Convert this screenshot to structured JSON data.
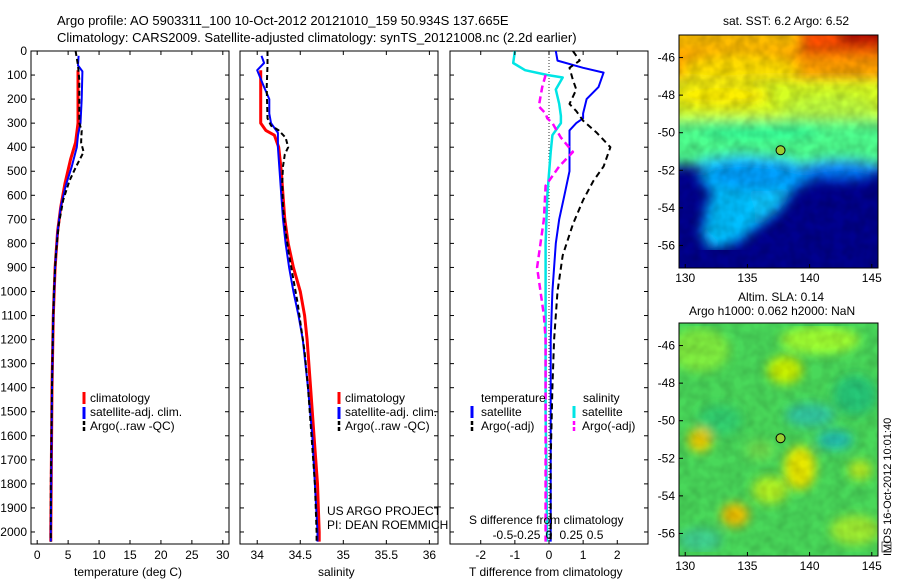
{
  "title": {
    "line1": "Argo profile: AO 5903311_100 10-Oct-2012 20121010_159 50.934S 137.665E",
    "line2": "Climatology: CARS2009. Satellite-adjusted climatology: synTS_20121008.nc (2.2d earlier)"
  },
  "colors": {
    "climatology": "#ff0000",
    "satellite": "#0000ff",
    "argo": "#000000",
    "salinity_satellite": "#00e5e5",
    "salinity_argo": "#ff00ff"
  },
  "legend_profile": {
    "climatology": "climatology",
    "satellite": "satellite-adj. clim.",
    "argo": "Argo(..raw -QC)"
  },
  "legend_diff": {
    "temperature": "temperature",
    "salinity": "salinity",
    "satellite": "satellite",
    "argo": "Argo(-adj)"
  },
  "credit": {
    "line1": "US ARGO PROJECT",
    "line2": "PI: DEAN ROEMMICH"
  },
  "vertical_stamp": "IMOS 16-Oct-2012 10:01:40",
  "chart_data": [
    {
      "type": "line",
      "id": "temperature",
      "xlabel": "temperature (deg C)",
      "ylabel": "",
      "xlim": [
        -1,
        31
      ],
      "ylim": [
        2050,
        0
      ],
      "x_ticks": [
        0,
        5,
        10,
        15,
        20,
        25,
        30
      ],
      "y_ticks": [
        0,
        100,
        200,
        300,
        400,
        500,
        600,
        700,
        800,
        900,
        1000,
        1100,
        1200,
        1300,
        1400,
        1500,
        1600,
        1700,
        1800,
        1900,
        2000
      ],
      "series": [
        {
          "key": "climatology",
          "points": [
            [
              6.6,
              80
            ],
            [
              6.6,
              300
            ],
            [
              6.2,
              380
            ],
            [
              5.4,
              450
            ],
            [
              4.5,
              550
            ],
            [
              3.8,
              650
            ],
            [
              3.3,
              750
            ],
            [
              2.9,
              900
            ],
            [
              2.6,
              1100
            ],
            [
              2.4,
              1400
            ],
            [
              2.3,
              1700
            ],
            [
              2.2,
              2000
            ],
            [
              2.2,
              2040
            ]
          ]
        },
        {
          "key": "satellite",
          "points": [
            [
              6.7,
              20
            ],
            [
              6.6,
              60
            ],
            [
              7.3,
              85
            ],
            [
              7.2,
              200
            ],
            [
              7.0,
              300
            ],
            [
              6.6,
              350
            ],
            [
              6.4,
              400
            ],
            [
              5.6,
              480
            ],
            [
              4.6,
              560
            ],
            [
              3.8,
              650
            ],
            [
              3.3,
              750
            ],
            [
              2.9,
              900
            ],
            [
              2.6,
              1100
            ],
            [
              2.4,
              1400
            ],
            [
              2.3,
              1700
            ],
            [
              2.2,
              2000
            ],
            [
              2.2,
              2040
            ]
          ]
        },
        {
          "key": "argo",
          "points": [
            [
              6.2,
              0
            ],
            [
              6.6,
              60
            ],
            [
              6.8,
              120
            ],
            [
              6.8,
              300
            ],
            [
              7.2,
              330
            ],
            [
              7.1,
              380
            ],
            [
              7.5,
              420
            ],
            [
              6.3,
              480
            ],
            [
              5.2,
              540
            ],
            [
              4.2,
              620
            ],
            [
              3.5,
              720
            ],
            [
              3.0,
              850
            ],
            [
              2.7,
              1000
            ],
            [
              2.5,
              1200
            ],
            [
              2.4,
              1400
            ],
            [
              2.3,
              1600
            ],
            [
              2.2,
              1800
            ],
            [
              2.2,
              2000
            ],
            [
              2.2,
              2040
            ]
          ]
        }
      ]
    },
    {
      "type": "line",
      "id": "salinity",
      "xlabel": "salinity",
      "ylabel": "",
      "xlim": [
        33.8,
        36.1
      ],
      "ylim": [
        2050,
        0
      ],
      "x_ticks": [
        34,
        34.5,
        35,
        35.5,
        36
      ],
      "x_tick_labels": [
        "34",
        "34.5",
        "35",
        "35.5",
        "36"
      ],
      "series": [
        {
          "key": "climatology",
          "points": [
            [
              34.04,
              80
            ],
            [
              34.04,
              300
            ],
            [
              34.1,
              330
            ],
            [
              34.2,
              350
            ],
            [
              34.25,
              400
            ],
            [
              34.28,
              500
            ],
            [
              34.3,
              600
            ],
            [
              34.32,
              700
            ],
            [
              34.36,
              800
            ],
            [
              34.42,
              900
            ],
            [
              34.5,
              1000
            ],
            [
              34.55,
              1100
            ],
            [
              34.58,
              1200
            ],
            [
              34.62,
              1400
            ],
            [
              34.66,
              1600
            ],
            [
              34.7,
              1800
            ],
            [
              34.72,
              2000
            ],
            [
              34.72,
              2040
            ]
          ]
        },
        {
          "key": "satellite",
          "points": [
            [
              34.05,
              20
            ],
            [
              34.08,
              50
            ],
            [
              34.0,
              80
            ],
            [
              34.08,
              150
            ],
            [
              34.14,
              200
            ],
            [
              34.14,
              260
            ],
            [
              34.16,
              300
            ],
            [
              34.24,
              340
            ],
            [
              34.24,
              400
            ],
            [
              34.26,
              500
            ],
            [
              34.28,
              600
            ],
            [
              34.3,
              700
            ],
            [
              34.33,
              800
            ],
            [
              34.37,
              900
            ],
            [
              34.42,
              1000
            ],
            [
              34.48,
              1100
            ],
            [
              34.53,
              1200
            ],
            [
              34.59,
              1400
            ],
            [
              34.64,
              1600
            ],
            [
              34.67,
              1800
            ],
            [
              34.7,
              2000
            ],
            [
              34.7,
              2040
            ]
          ]
        },
        {
          "key": "argo",
          "points": [
            [
              34.12,
              0
            ],
            [
              34.12,
              60
            ],
            [
              34.11,
              150
            ],
            [
              34.12,
              280
            ],
            [
              34.16,
              310
            ],
            [
              34.25,
              330
            ],
            [
              34.33,
              360
            ],
            [
              34.36,
              400
            ],
            [
              34.32,
              430
            ],
            [
              34.3,
              480
            ],
            [
              34.29,
              550
            ],
            [
              34.3,
              650
            ],
            [
              34.33,
              750
            ],
            [
              34.37,
              850
            ],
            [
              34.42,
              950
            ],
            [
              34.47,
              1050
            ],
            [
              34.51,
              1150
            ],
            [
              34.55,
              1250
            ],
            [
              34.59,
              1400
            ],
            [
              34.63,
              1600
            ],
            [
              34.67,
              1800
            ],
            [
              34.69,
              2000
            ],
            [
              34.69,
              2040
            ]
          ]
        }
      ]
    },
    {
      "type": "line",
      "id": "difference",
      "xlabel": "T difference from climatology",
      "xlabel2": "S difference from climatology",
      "ylabel": "",
      "xlim": [
        -2.9,
        2.9
      ],
      "ylim": [
        2050,
        0
      ],
      "x_ticks": [
        -2,
        -1,
        0,
        1,
        2
      ],
      "x_tick_labels": [
        "-2",
        "-1",
        "0",
        "1",
        "2"
      ],
      "s_ticks": [
        -0.5,
        -0.25,
        0,
        0.25,
        0.5
      ],
      "s_tick_labels": [
        "-0.5",
        "-0.25",
        "0",
        "0.25",
        "0.5"
      ],
      "s_tick_positions_T_units": [
        -1.35,
        -0.65,
        0,
        0.65,
        1.35
      ],
      "zero_line": true,
      "series": [
        {
          "key": "t_satellite",
          "points": [
            [
              0.2,
              0
            ],
            [
              0.25,
              40
            ],
            [
              1.0,
              70
            ],
            [
              1.6,
              90
            ],
            [
              1.45,
              150
            ],
            [
              1.1,
              200
            ],
            [
              1.0,
              260
            ],
            [
              1.0,
              280
            ],
            [
              0.8,
              300
            ],
            [
              0.6,
              330
            ],
            [
              0.6,
              400
            ],
            [
              0.6,
              500
            ],
            [
              0.45,
              600
            ],
            [
              0.3,
              700
            ],
            [
              0.2,
              800
            ],
            [
              0.15,
              900
            ],
            [
              0.1,
              1000
            ],
            [
              0.05,
              1200
            ],
            [
              0.05,
              1400
            ],
            [
              0.05,
              1600
            ],
            [
              0.05,
              2000
            ],
            [
              0.05,
              2040
            ]
          ]
        },
        {
          "key": "t_argo",
          "points": [
            [
              0.7,
              0
            ],
            [
              0.9,
              40
            ],
            [
              0.6,
              70
            ],
            [
              0.7,
              120
            ],
            [
              0.8,
              160
            ],
            [
              0.6,
              220
            ],
            [
              0.8,
              250
            ],
            [
              1.0,
              290
            ],
            [
              1.4,
              340
            ],
            [
              1.8,
              400
            ],
            [
              1.6,
              480
            ],
            [
              1.3,
              540
            ],
            [
              1.0,
              620
            ],
            [
              0.7,
              720
            ],
            [
              0.4,
              850
            ],
            [
              0.25,
              1000
            ],
            [
              0.15,
              1200
            ],
            [
              0.1,
              1400
            ],
            [
              0.05,
              1700
            ],
            [
              0.05,
              2000
            ],
            [
              0.05,
              2040
            ]
          ]
        },
        {
          "key": "s_satellite",
          "points": [
            [
              -1.0,
              0
            ],
            [
              -1.05,
              50
            ],
            [
              -0.7,
              80
            ],
            [
              -0.05,
              100
            ],
            [
              0.4,
              110
            ],
            [
              0.2,
              160
            ],
            [
              0.3,
              220
            ],
            [
              0.35,
              270
            ],
            [
              0.35,
              300
            ],
            [
              0.1,
              350
            ],
            [
              0.05,
              420
            ],
            [
              -0.05,
              600
            ],
            [
              -0.1,
              800
            ],
            [
              -0.1,
              1000
            ],
            [
              -0.1,
              1500
            ],
            [
              -0.08,
              1700
            ],
            [
              -0.06,
              2000
            ],
            [
              -0.06,
              2040
            ]
          ]
        },
        {
          "key": "s_argo",
          "points": [
            [
              -0.1,
              100
            ],
            [
              -0.2,
              150
            ],
            [
              -0.3,
              230
            ],
            [
              -0.1,
              260
            ],
            [
              -0.05,
              280
            ],
            [
              0.1,
              300
            ],
            [
              0.35,
              360
            ],
            [
              0.7,
              420
            ],
            [
              0.3,
              480
            ],
            [
              -0.1,
              560
            ],
            [
              -0.15,
              700
            ],
            [
              -0.25,
              800
            ],
            [
              -0.35,
              900
            ],
            [
              -0.25,
              1000
            ],
            [
              -0.15,
              1100
            ],
            [
              -0.1,
              1200
            ],
            [
              -0.1,
              1400
            ],
            [
              -0.1,
              2000
            ],
            [
              -0.1,
              2040
            ]
          ]
        }
      ]
    },
    {
      "type": "heatmap",
      "id": "sst-map",
      "title": "sat. SST: 6.2 Argo: 6.52",
      "x_ticks": [
        130,
        135,
        140,
        145
      ],
      "y_ticks": [
        -46,
        -48,
        -50,
        -52,
        -54,
        -56
      ],
      "xlim": [
        129.5,
        145.5
      ],
      "ylim": [
        -57.2,
        -44.8
      ],
      "marker": {
        "lon": 137.665,
        "lat": -50.934
      }
    },
    {
      "type": "heatmap",
      "id": "sla-map",
      "title": "Altim. SLA: 0.14",
      "subtitle": "Argo h1000: 0.062 h2000: NaN",
      "x_ticks": [
        130,
        135,
        140,
        145
      ],
      "y_ticks": [
        -46,
        -48,
        -50,
        -52,
        -54,
        -56
      ],
      "xlim": [
        129.5,
        145.5
      ],
      "ylim": [
        -57.2,
        -44.8
      ],
      "marker": {
        "lon": 137.665,
        "lat": -50.934
      }
    }
  ]
}
